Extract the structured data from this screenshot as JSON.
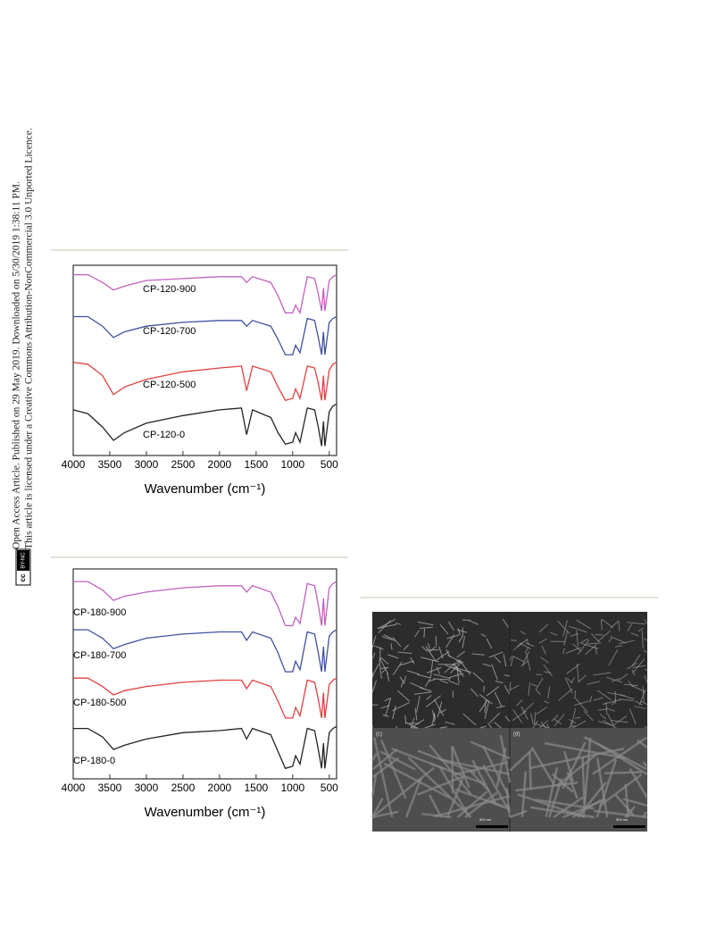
{
  "sidebar": {
    "line1": "Open Access Article. Published on 29 May 2019. Downloaded on 5/30/2019 1:38:11 PM.",
    "line2": "This article is licensed under a Creative Commons Attribution-NonCommercial 3.0 Unported Licence.",
    "badge_cc": "cc",
    "badge_text": "BY-NC"
  },
  "chart_data": [
    {
      "type": "line",
      "xlabel": "Wavenumber (cm⁻¹)",
      "x": [
        4000,
        3800,
        3600,
        3450,
        3300,
        3000,
        2500,
        2000,
        1700,
        1630,
        1550,
        1300,
        1200,
        1100,
        1000,
        960,
        900,
        800,
        700,
        650,
        605,
        580,
        560,
        500,
        450,
        400
      ],
      "xlim": [
        4000,
        400
      ],
      "xticks": [
        4000,
        3500,
        3000,
        2500,
        2000,
        1500,
        1000,
        500
      ],
      "ylim": [
        0,
        100
      ],
      "series": [
        {
          "name": "CP-120-900",
          "color": "#c060c0",
          "values": [
            95,
            95,
            91,
            87,
            89,
            92,
            93,
            94,
            94,
            91,
            94,
            91,
            84,
            75,
            75,
            79,
            75,
            94,
            93,
            85,
            76,
            88,
            76,
            92,
            94,
            95
          ]
        },
        {
          "name": "CP-120-700",
          "color": "#4050a0",
          "values": [
            73,
            73,
            68,
            62,
            65,
            68,
            70,
            71,
            71,
            68,
            71,
            68,
            61,
            53,
            53,
            58,
            54,
            72,
            71,
            62,
            53,
            65,
            53,
            70,
            72,
            73
          ]
        },
        {
          "name": "CP-120-500",
          "color": "#e04040",
          "values": [
            49,
            48,
            42,
            32,
            36,
            40,
            44,
            46,
            47,
            34,
            47,
            44,
            36,
            29,
            30,
            35,
            30,
            47,
            46,
            38,
            29,
            42,
            29,
            45,
            48,
            49
          ]
        },
        {
          "name": "CP-120-0",
          "color": "#222222",
          "values": [
            24,
            22,
            15,
            8,
            12,
            17,
            21,
            24,
            25,
            11,
            24,
            20,
            12,
            6,
            7,
            12,
            7,
            25,
            24,
            15,
            5,
            18,
            5,
            23,
            26,
            27
          ]
        }
      ]
    },
    {
      "type": "line",
      "xlabel": "Wavenumber (cm⁻¹)",
      "x": [
        4000,
        3800,
        3600,
        3450,
        3300,
        3000,
        2500,
        2000,
        1700,
        1630,
        1550,
        1300,
        1200,
        1100,
        1000,
        960,
        900,
        800,
        700,
        650,
        605,
        580,
        560,
        500,
        450,
        400
      ],
      "xlim": [
        4000,
        400
      ],
      "xticks": [
        4000,
        3500,
        3000,
        2500,
        2000,
        1500,
        1000,
        500
      ],
      "ylim": [
        0,
        100
      ],
      "series": [
        {
          "name": "CP-180-900",
          "color": "#c060c0",
          "values": [
            94,
            94,
            90,
            85,
            87,
            89,
            91,
            92,
            92,
            89,
            92,
            89,
            82,
            73,
            73,
            77,
            74,
            93,
            92,
            83,
            73,
            86,
            73,
            91,
            93,
            94
          ]
        },
        {
          "name": "CP-180-700",
          "color": "#4050a0",
          "values": [
            71,
            71,
            67,
            62,
            64,
            67,
            69,
            70,
            70,
            66,
            70,
            67,
            60,
            51,
            51,
            56,
            52,
            70,
            69,
            60,
            51,
            63,
            51,
            68,
            70,
            71
          ]
        },
        {
          "name": "CP-180-500",
          "color": "#e04040",
          "values": [
            48,
            48,
            44,
            40,
            42,
            44,
            46,
            47,
            47,
            43,
            47,
            44,
            37,
            29,
            29,
            34,
            30,
            47,
            46,
            38,
            29,
            41,
            29,
            45,
            47,
            48
          ]
        },
        {
          "name": "CP-180-0",
          "color": "#222222",
          "values": [
            24,
            24,
            20,
            14,
            16,
            19,
            22,
            23,
            24,
            19,
            24,
            21,
            13,
            5,
            6,
            11,
            7,
            24,
            23,
            14,
            5,
            17,
            5,
            22,
            24,
            25
          ]
        }
      ]
    }
  ],
  "figure": {
    "panels": [
      "(c)",
      "(d)"
    ],
    "scale_bars": [
      "500 nm",
      "500 nm"
    ]
  }
}
